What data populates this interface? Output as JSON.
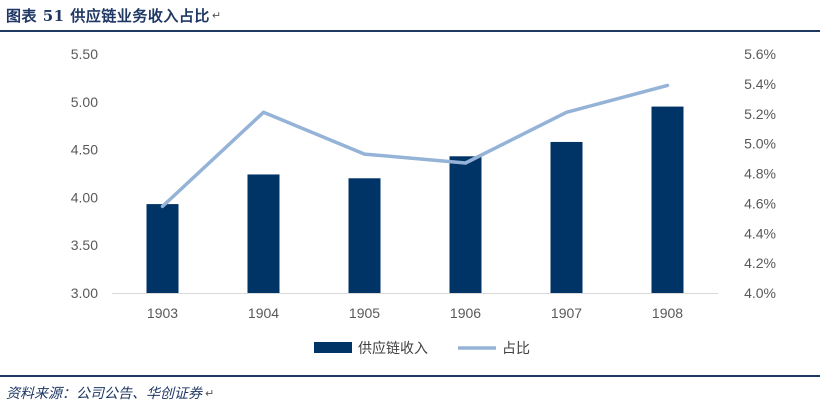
{
  "title": "图表 51 供应链业务收入占比",
  "source": "资料来源：公司公告、华创证券",
  "colors": {
    "bar": "#003366",
    "line": "#95b3d7",
    "heading": "#1f3864",
    "tick": "#595959"
  },
  "chart_data": {
    "type": "bar+line",
    "categories": [
      "1903",
      "1904",
      "1905",
      "1906",
      "1907",
      "1908"
    ],
    "series": [
      {
        "name": "供应链收入",
        "type": "bar",
        "axis": "left",
        "values": [
          3.93,
          4.24,
          4.2,
          4.43,
          4.58,
          4.95
        ]
      },
      {
        "name": "占比",
        "type": "line",
        "axis": "right",
        "values": [
          4.58,
          5.21,
          4.93,
          4.87,
          5.21,
          5.39
        ]
      }
    ],
    "y_left": {
      "min": 3.0,
      "max": 5.5,
      "ticks": [
        "3.00",
        "3.50",
        "4.00",
        "4.50",
        "5.00",
        "5.50"
      ]
    },
    "y_right": {
      "min": 4.0,
      "max": 5.6,
      "ticks": [
        "4.0%",
        "4.2%",
        "4.4%",
        "4.6%",
        "4.8%",
        "5.0%",
        "5.2%",
        "5.4%",
        "5.6%"
      ]
    },
    "legend_position": "bottom",
    "grid": false
  }
}
